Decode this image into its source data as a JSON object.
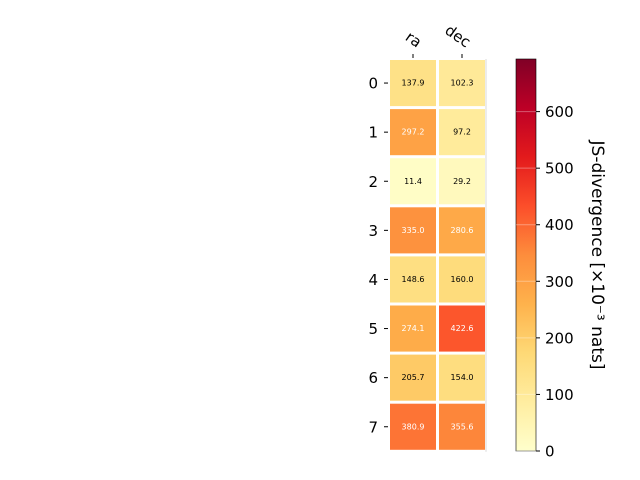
{
  "chart_data": {
    "type": "heatmap",
    "columns": [
      "ra",
      "dec"
    ],
    "rows": [
      "0",
      "1",
      "2",
      "3",
      "4",
      "5",
      "6",
      "7"
    ],
    "values": [
      [
        137.9,
        102.3
      ],
      [
        297.2,
        97.2
      ],
      [
        11.4,
        29.2
      ],
      [
        335.0,
        280.6
      ],
      [
        148.6,
        160.0
      ],
      [
        274.1,
        422.6
      ],
      [
        205.7,
        154.0
      ],
      [
        380.9,
        355.6
      ]
    ],
    "value_labels": [
      [
        "137.9",
        "102.3"
      ],
      [
        "297.2",
        "97.2"
      ],
      [
        "11.4",
        "29.2"
      ],
      [
        "335.0",
        "280.6"
      ],
      [
        "148.6",
        "160.0"
      ],
      [
        "274.1",
        "422.6"
      ],
      [
        "205.7",
        "154.0"
      ],
      [
        "380.9",
        "355.6"
      ]
    ],
    "colorbar": {
      "label": "JS-divergence [×10⁻³ nats]",
      "range": [
        0,
        693
      ],
      "ticks": [
        0,
        100,
        200,
        300,
        400,
        500,
        600
      ],
      "tick_labels": [
        "0",
        "100",
        "200",
        "300",
        "400",
        "500",
        "600"
      ],
      "colormap": "YlOrRd",
      "colors": [
        "#ffffcc",
        "#ffeda0",
        "#fed976",
        "#feb24c",
        "#fd8d3c",
        "#fc4e2a",
        "#e31a1c",
        "#bd0026",
        "#800026"
      ]
    },
    "grid": false,
    "legend": "colorbar-right"
  }
}
